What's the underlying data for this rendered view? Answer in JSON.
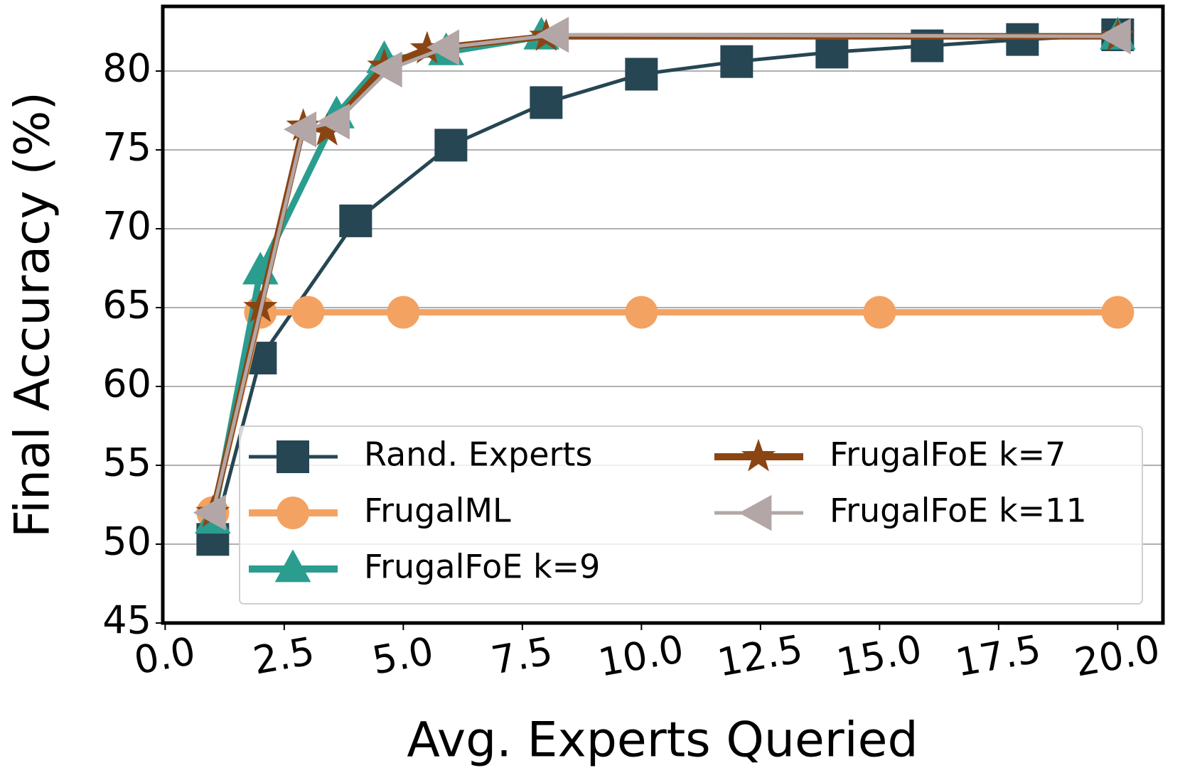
{
  "chart_data": {
    "type": "line",
    "x_label": "Avg. Experts Queried",
    "y_label": "Final Accuracy (%)",
    "xlim": [
      -0.05,
      20.95
    ],
    "ylim": [
      45,
      84.1
    ],
    "xticks": [
      {
        "value": 0,
        "label": "0.0"
      },
      2.5,
      {
        "value": 5,
        "label": "5.0"
      },
      7.5,
      {
        "value": 10,
        "label": "10.0"
      },
      12.5,
      {
        "value": 15,
        "label": "15.0"
      },
      17.5,
      {
        "value": 20,
        "label": "20.0"
      }
    ],
    "yticks": [
      45,
      50,
      55,
      60,
      65,
      70,
      75,
      80
    ],
    "grid": true,
    "legend": "lower right",
    "series": [
      {
        "name": "Rand. Experts",
        "color": "#264653",
        "marker": "square",
        "x": [
          1,
          2,
          4,
          6,
          8,
          10,
          12,
          14,
          16,
          18,
          20
        ],
        "values": [
          50.3,
          61.8,
          70.5,
          75.3,
          78.0,
          79.8,
          80.6,
          81.2,
          81.6,
          82.0,
          82.3
        ]
      },
      {
        "name": "FrugalML",
        "color": "#f4a261",
        "marker": "circle",
        "x": [
          1,
          2,
          3,
          5,
          10,
          15,
          20
        ],
        "values": [
          52.0,
          64.7,
          64.7,
          64.7,
          64.7,
          64.7,
          64.7
        ]
      },
      {
        "name": "FrugalFoE k=9",
        "color": "#2a9d8f",
        "marker": "triangle-up",
        "x": [
          1,
          2,
          3.6,
          4.6,
          5.9,
          7.9,
          20
        ],
        "values": [
          51.5,
          67.3,
          77.2,
          80.7,
          81.2,
          82.2,
          82.2
        ]
      },
      {
        "name": "FrugalFoE k=7",
        "color": "#8b4513",
        "marker": "star",
        "x": [
          1,
          2,
          2.9,
          3.4,
          4.6,
          5.5,
          8,
          20
        ],
        "values": [
          52.0,
          65.0,
          76.5,
          76.2,
          80.3,
          81.4,
          82.2,
          82.2
        ]
      },
      {
        "name": "FrugalFoE k=11",
        "color": "#b3a6a6",
        "marker": "triangle-left",
        "x": [
          1,
          2.9,
          3.6,
          4.7,
          5.9,
          8.2,
          20
        ],
        "values": [
          52.0,
          76.3,
          76.8,
          80.1,
          81.5,
          82.3,
          82.2
        ]
      }
    ]
  }
}
